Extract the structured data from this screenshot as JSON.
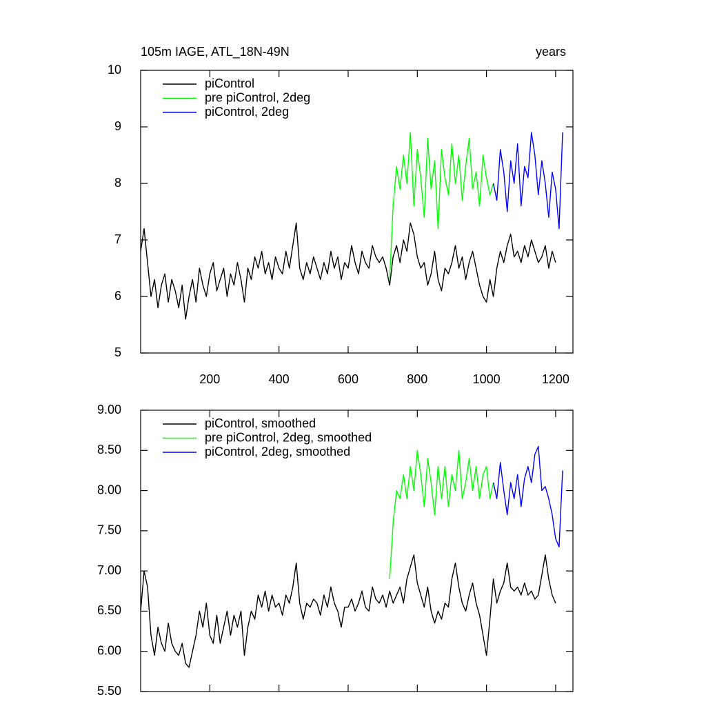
{
  "chart_data": [
    {
      "type": "line",
      "title": "105m IAGE, ATL_18N-49N",
      "unit_label": "years",
      "x": [
        0,
        10,
        20,
        30,
        40,
        50,
        60,
        70,
        80,
        90,
        100,
        110,
        120,
        130,
        140,
        150,
        160,
        170,
        180,
        190,
        200,
        210,
        220,
        230,
        240,
        250,
        260,
        270,
        280,
        290,
        300,
        310,
        320,
        330,
        340,
        350,
        360,
        370,
        380,
        390,
        400,
        410,
        420,
        430,
        440,
        450,
        460,
        470,
        480,
        490,
        500,
        510,
        520,
        530,
        540,
        550,
        560,
        570,
        580,
        590,
        600,
        610,
        620,
        630,
        640,
        650,
        660,
        670,
        680,
        690,
        700,
        710,
        720,
        730,
        740,
        750,
        760,
        770,
        780,
        790,
        800,
        810,
        820,
        830,
        840,
        850,
        860,
        870,
        880,
        890,
        900,
        910,
        920,
        930,
        940,
        950,
        960,
        970,
        980,
        990,
        1000,
        1010,
        1020,
        1030,
        1040,
        1050,
        1060,
        1070,
        1080,
        1090,
        1100,
        1110,
        1120,
        1130,
        1140,
        1150,
        1160,
        1170,
        1180,
        1190,
        1200,
        1210,
        1220
      ],
      "xlim": [
        0,
        1250
      ],
      "xticks": [
        200,
        400,
        600,
        800,
        1000,
        1200
      ],
      "ylim": [
        5,
        10
      ],
      "yticks": [
        5,
        6,
        7,
        8,
        9,
        10
      ],
      "series": [
        {
          "name": "piControl",
          "color": "#000000",
          "values": [
            6.8,
            7.2,
            6.6,
            6.0,
            6.3,
            5.8,
            6.2,
            6.4,
            5.9,
            6.3,
            6.1,
            5.8,
            6.2,
            5.6,
            6.0,
            6.3,
            5.9,
            6.5,
            6.2,
            6.0,
            6.4,
            6.6,
            6.1,
            6.3,
            6.5,
            6.0,
            6.4,
            6.2,
            6.6,
            6.3,
            5.9,
            6.5,
            6.3,
            6.7,
            6.5,
            6.8,
            6.4,
            6.6,
            6.3,
            6.7,
            6.5,
            6.4,
            6.8,
            6.5,
            6.9,
            7.3,
            6.5,
            6.3,
            6.6,
            6.4,
            6.7,
            6.5,
            6.3,
            6.6,
            6.4,
            6.8,
            6.5,
            6.7,
            6.3,
            6.6,
            6.5,
            6.9,
            6.6,
            6.4,
            6.8,
            6.6,
            6.5,
            6.9,
            6.7,
            6.6,
            6.7,
            6.5,
            6.2,
            6.7,
            6.9,
            6.6,
            7.0,
            6.8,
            7.3,
            7.1,
            6.7,
            6.5,
            6.6,
            6.2,
            6.4,
            6.8,
            6.3,
            6.1,
            6.5,
            6.4,
            6.6,
            6.9,
            6.5,
            6.7,
            6.3,
            6.6,
            6.8,
            6.5,
            6.2,
            6.0,
            5.9,
            6.3,
            6.0,
            6.5,
            6.8,
            6.6,
            6.9,
            7.1,
            6.7,
            6.8,
            6.6,
            6.9,
            6.7,
            7.0,
            6.8,
            6.6,
            6.7,
            6.9,
            6.5,
            6.8,
            6.6,
            null,
            null
          ]
        },
        {
          "name": "pre piControl, 2deg",
          "color": "#00ff00",
          "values": [
            null,
            null,
            null,
            null,
            null,
            null,
            null,
            null,
            null,
            null,
            null,
            null,
            null,
            null,
            null,
            null,
            null,
            null,
            null,
            null,
            null,
            null,
            null,
            null,
            null,
            null,
            null,
            null,
            null,
            null,
            null,
            null,
            null,
            null,
            null,
            null,
            null,
            null,
            null,
            null,
            null,
            null,
            null,
            null,
            null,
            null,
            null,
            null,
            null,
            null,
            null,
            null,
            null,
            null,
            null,
            null,
            null,
            null,
            null,
            null,
            null,
            null,
            null,
            null,
            null,
            null,
            null,
            null,
            null,
            null,
            null,
            null,
            6.3,
            7.6,
            8.3,
            7.9,
            8.5,
            8.0,
            8.9,
            7.6,
            8.6,
            8.1,
            7.4,
            8.8,
            7.9,
            8.4,
            7.2,
            8.6,
            8.1,
            7.8,
            8.7,
            8.0,
            8.5,
            7.7,
            8.3,
            8.8,
            7.9,
            8.2,
            7.6,
            8.5,
            8.1,
            7.8,
            8.0,
            null,
            null,
            null,
            null,
            null,
            null,
            null,
            null,
            null,
            null,
            null,
            null,
            null,
            null,
            null,
            null,
            null,
            null,
            null,
            null
          ]
        },
        {
          "name": "piControl, 2deg",
          "color": "#0000ff",
          "values": [
            null,
            null,
            null,
            null,
            null,
            null,
            null,
            null,
            null,
            null,
            null,
            null,
            null,
            null,
            null,
            null,
            null,
            null,
            null,
            null,
            null,
            null,
            null,
            null,
            null,
            null,
            null,
            null,
            null,
            null,
            null,
            null,
            null,
            null,
            null,
            null,
            null,
            null,
            null,
            null,
            null,
            null,
            null,
            null,
            null,
            null,
            null,
            null,
            null,
            null,
            null,
            null,
            null,
            null,
            null,
            null,
            null,
            null,
            null,
            null,
            null,
            null,
            null,
            null,
            null,
            null,
            null,
            null,
            null,
            null,
            null,
            null,
            null,
            null,
            null,
            null,
            null,
            null,
            null,
            null,
            null,
            null,
            null,
            null,
            null,
            null,
            null,
            null,
            null,
            null,
            null,
            null,
            null,
            null,
            null,
            null,
            null,
            null,
            null,
            null,
            null,
            null,
            8.0,
            7.7,
            8.6,
            8.2,
            7.5,
            8.4,
            8.0,
            8.7,
            7.6,
            8.3,
            8.1,
            8.9,
            8.5,
            7.8,
            8.4,
            8.0,
            7.4,
            8.2,
            7.9,
            7.2,
            8.9
          ]
        }
      ]
    },
    {
      "type": "line",
      "x": [
        0,
        10,
        20,
        30,
        40,
        50,
        60,
        70,
        80,
        90,
        100,
        110,
        120,
        130,
        140,
        150,
        160,
        170,
        180,
        190,
        200,
        210,
        220,
        230,
        240,
        250,
        260,
        270,
        280,
        290,
        300,
        310,
        320,
        330,
        340,
        350,
        360,
        370,
        380,
        390,
        400,
        410,
        420,
        430,
        440,
        450,
        460,
        470,
        480,
        490,
        500,
        510,
        520,
        530,
        540,
        550,
        560,
        570,
        580,
        590,
        600,
        610,
        620,
        630,
        640,
        650,
        660,
        670,
        680,
        690,
        700,
        710,
        720,
        730,
        740,
        750,
        760,
        770,
        780,
        790,
        800,
        810,
        820,
        830,
        840,
        850,
        860,
        870,
        880,
        890,
        900,
        910,
        920,
        930,
        940,
        950,
        960,
        970,
        980,
        990,
        1000,
        1010,
        1020,
        1030,
        1040,
        1050,
        1060,
        1070,
        1080,
        1090,
        1100,
        1110,
        1120,
        1130,
        1140,
        1150,
        1160,
        1170,
        1180,
        1190,
        1200,
        1210,
        1220
      ],
      "xlim": [
        0,
        1250
      ],
      "xticks": [
        200,
        400,
        600,
        800,
        1000,
        1200
      ],
      "ylim": [
        5.5,
        9
      ],
      "yticks": [
        {
          "value": 5.5,
          "label": "5.50"
        },
        {
          "value": 6,
          "label": "6.00"
        },
        {
          "value": 6.5,
          "label": "6.50"
        },
        {
          "value": 7,
          "label": "7.00"
        },
        {
          "value": 7.5,
          "label": "7.50"
        },
        {
          "value": 8,
          "label": "8.00"
        },
        {
          "value": 8.5,
          "label": "8.50"
        },
        {
          "value": 9,
          "label": "9.00"
        }
      ],
      "series": [
        {
          "name": "piControl, smoothed",
          "color": "#000000",
          "values": [
            6.5,
            7.0,
            6.8,
            6.2,
            5.95,
            6.3,
            6.1,
            6.0,
            6.35,
            6.1,
            6.0,
            5.95,
            6.1,
            5.85,
            5.8,
            6.0,
            6.2,
            6.5,
            6.3,
            6.6,
            6.2,
            6.1,
            6.45,
            6.1,
            6.3,
            6.5,
            6.2,
            6.45,
            6.3,
            6.5,
            5.95,
            6.3,
            6.5,
            6.4,
            6.7,
            6.55,
            6.75,
            6.5,
            6.7,
            6.55,
            6.6,
            6.45,
            6.7,
            6.6,
            6.8,
            7.1,
            6.6,
            6.4,
            6.6,
            6.55,
            6.65,
            6.6,
            6.45,
            6.7,
            6.55,
            6.8,
            6.6,
            6.5,
            6.3,
            6.55,
            6.55,
            6.65,
            6.5,
            6.6,
            6.75,
            6.55,
            6.5,
            6.8,
            6.65,
            6.6,
            6.7,
            6.55,
            6.75,
            6.6,
            6.7,
            6.8,
            6.6,
            6.9,
            7.05,
            7.2,
            6.85,
            6.7,
            6.55,
            6.8,
            6.5,
            6.35,
            6.5,
            6.4,
            6.6,
            6.55,
            6.9,
            7.1,
            6.8,
            6.6,
            6.5,
            6.7,
            6.85,
            6.6,
            6.45,
            6.2,
            5.95,
            6.4,
            6.9,
            6.6,
            6.75,
            6.85,
            7.1,
            6.8,
            6.75,
            6.8,
            6.7,
            6.85,
            6.7,
            6.75,
            6.65,
            6.7,
            6.95,
            7.2,
            6.9,
            6.7,
            6.6,
            null,
            null
          ]
        },
        {
          "name": "pre piControl, 2deg, smoothed",
          "color": "#00ff00",
          "values": [
            null,
            null,
            null,
            null,
            null,
            null,
            null,
            null,
            null,
            null,
            null,
            null,
            null,
            null,
            null,
            null,
            null,
            null,
            null,
            null,
            null,
            null,
            null,
            null,
            null,
            null,
            null,
            null,
            null,
            null,
            null,
            null,
            null,
            null,
            null,
            null,
            null,
            null,
            null,
            null,
            null,
            null,
            null,
            null,
            null,
            null,
            null,
            null,
            null,
            null,
            null,
            null,
            null,
            null,
            null,
            null,
            null,
            null,
            null,
            null,
            null,
            null,
            null,
            null,
            null,
            null,
            null,
            null,
            null,
            null,
            null,
            null,
            6.9,
            7.6,
            8.0,
            7.9,
            8.2,
            7.9,
            8.3,
            8.0,
            8.5,
            8.2,
            7.8,
            8.4,
            8.1,
            7.7,
            8.3,
            7.9,
            8.3,
            7.8,
            8.2,
            8.0,
            8.5,
            7.9,
            8.1,
            8.4,
            8.0,
            8.3,
            7.9,
            8.2,
            8.3,
            7.9,
            8.1,
            null,
            null,
            null,
            null,
            null,
            null,
            null,
            null,
            null,
            null,
            null,
            null,
            null,
            null,
            null,
            null,
            null,
            null,
            null,
            null
          ]
        },
        {
          "name": "piControl, 2deg, smoothed",
          "color": "#0000ff",
          "values": [
            null,
            null,
            null,
            null,
            null,
            null,
            null,
            null,
            null,
            null,
            null,
            null,
            null,
            null,
            null,
            null,
            null,
            null,
            null,
            null,
            null,
            null,
            null,
            null,
            null,
            null,
            null,
            null,
            null,
            null,
            null,
            null,
            null,
            null,
            null,
            null,
            null,
            null,
            null,
            null,
            null,
            null,
            null,
            null,
            null,
            null,
            null,
            null,
            null,
            null,
            null,
            null,
            null,
            null,
            null,
            null,
            null,
            null,
            null,
            null,
            null,
            null,
            null,
            null,
            null,
            null,
            null,
            null,
            null,
            null,
            null,
            null,
            null,
            null,
            null,
            null,
            null,
            null,
            null,
            null,
            null,
            null,
            null,
            null,
            null,
            null,
            null,
            null,
            null,
            null,
            null,
            null,
            null,
            null,
            null,
            null,
            null,
            null,
            null,
            null,
            null,
            null,
            8.1,
            7.9,
            8.35,
            8.0,
            7.7,
            8.1,
            7.9,
            8.2,
            7.8,
            8.15,
            8.3,
            8.1,
            8.45,
            8.55,
            8.0,
            8.05,
            7.9,
            7.7,
            7.4,
            7.3,
            8.25
          ]
        }
      ]
    }
  ]
}
